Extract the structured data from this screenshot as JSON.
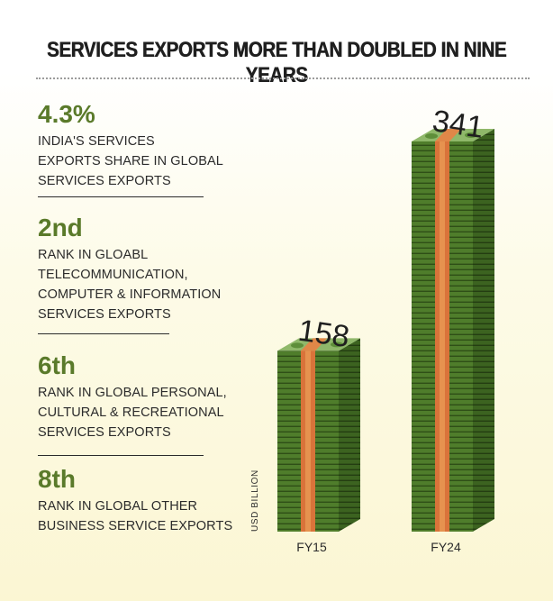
{
  "title": "SERVICES EXPORTS MORE THAN DOUBLED IN NINE YEARS",
  "stats": [
    {
      "value": "4.3%",
      "lines": [
        "INDIA'S SERVICES",
        "EXPORTS SHARE IN GLOBAL",
        "SERVICES EXPORTS"
      ]
    },
    {
      "value": "2nd",
      "lines": [
        "RANK IN GLOABL",
        "TELECOMMUNICATION,",
        "COMPUTER & INFORMATION",
        "SERVICES EXPORTS"
      ]
    },
    {
      "value": "6th",
      "lines": [
        "RANK IN GLOBAL PERSONAL,",
        "CULTURAL & RECREATIONAL",
        "SERVICES EXPORTS"
      ]
    },
    {
      "value": "8th",
      "lines": [
        "RANK IN GLOBAL OTHER",
        "BUSINESS SERVICE EXPORTS"
      ]
    }
  ],
  "colors": {
    "accent_green": "#5a7a2a",
    "stack_front": "#4e7a2a",
    "stack_side": "#3a5e1e",
    "band": "#d9733a"
  },
  "chart_data": {
    "type": "bar",
    "categories": [
      "FY15",
      "FY24"
    ],
    "values": [
      158,
      341
    ],
    "ylabel": "USD BILLION"
  }
}
